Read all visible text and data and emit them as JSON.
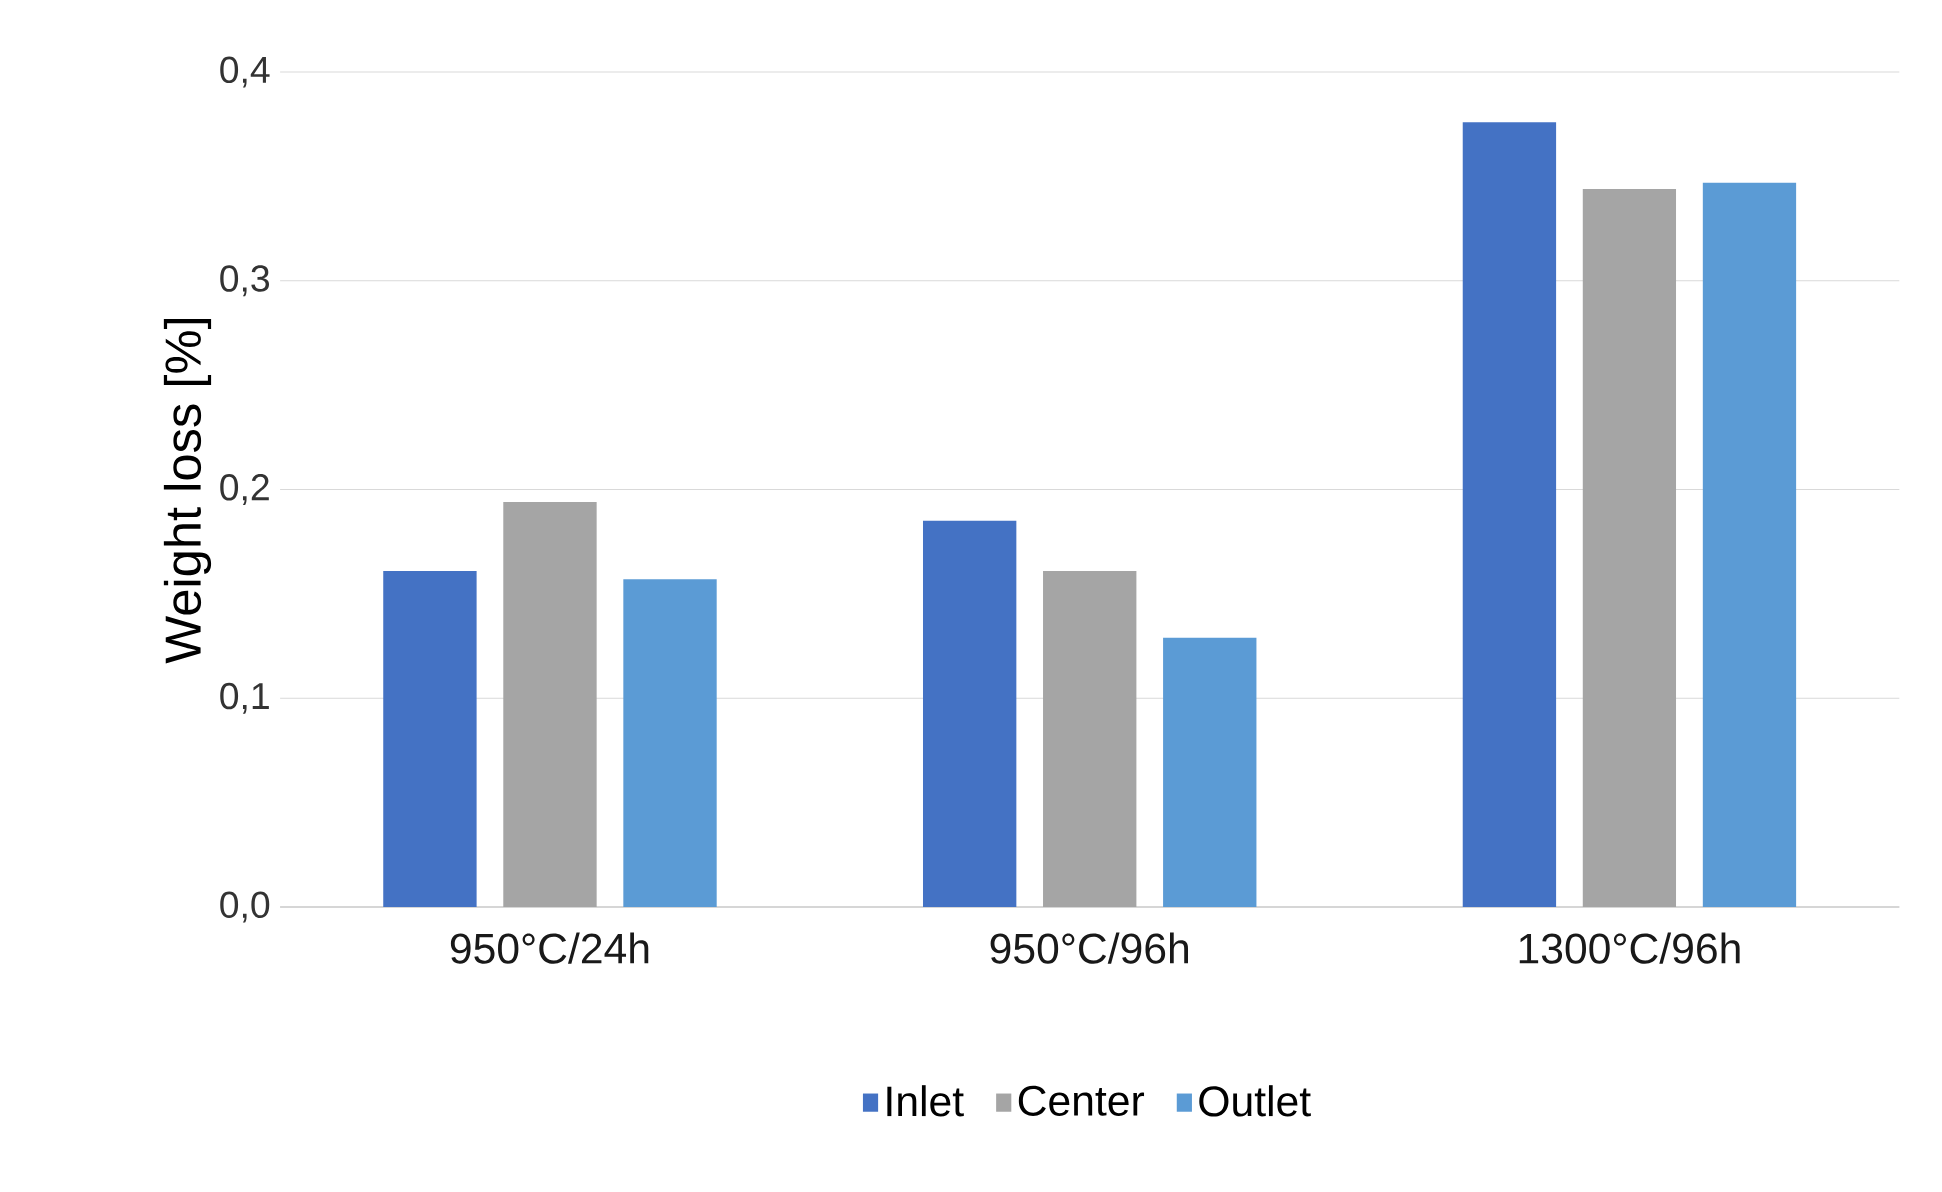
{
  "chart_data": {
    "type": "bar",
    "ylabel": "Weight loss [%]",
    "categories": [
      "950°C/24h",
      "950°C/96h",
      "1300°C/96h"
    ],
    "series": [
      {
        "name": "Inlet",
        "color": "#4472c4",
        "values": [
          0.161,
          0.185,
          0.376
        ]
      },
      {
        "name": "Center",
        "color": "#a5a5a5",
        "values": [
          0.194,
          0.161,
          0.344
        ]
      },
      {
        "name": "Outlet",
        "color": "#5b9bd5",
        "values": [
          0.157,
          0.129,
          0.347
        ]
      }
    ],
    "ylim": [
      0,
      0.4
    ],
    "yticks": [
      {
        "value": 0,
        "label": "0,0"
      },
      {
        "value": 0.1,
        "label": "0,1"
      },
      {
        "value": 0.2,
        "label": "0,2"
      },
      {
        "value": 0.3,
        "label": "0,3"
      },
      {
        "value": 0.4,
        "label": "0,4"
      }
    ],
    "grid": "y",
    "legend": "bottom"
  }
}
